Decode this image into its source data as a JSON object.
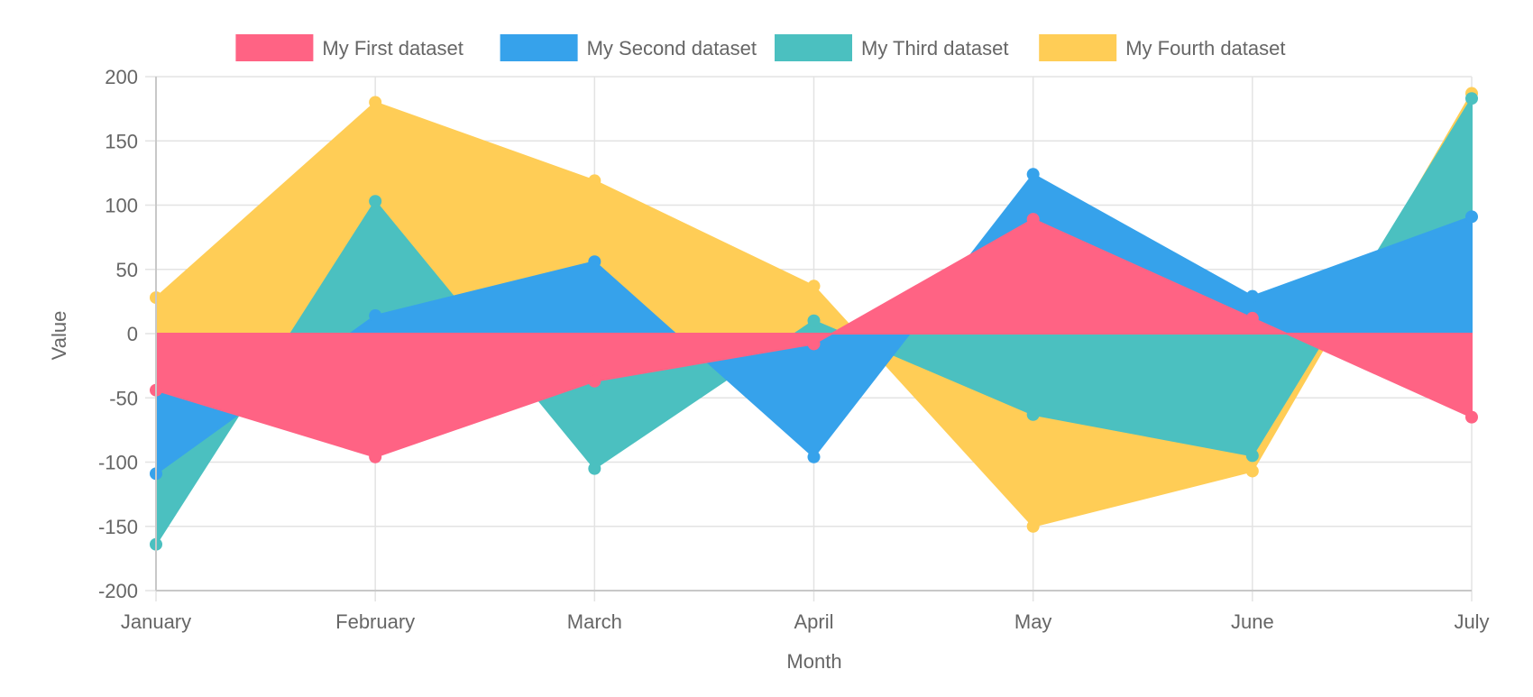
{
  "chart_data": {
    "type": "area",
    "title": "",
    "xlabel": "Month",
    "ylabel": "Value",
    "ylim": [
      -200,
      200
    ],
    "yticks": [
      200,
      150,
      100,
      50,
      0,
      -50,
      -100,
      -150,
      -200
    ],
    "categories": [
      "January",
      "February",
      "March",
      "April",
      "May",
      "June",
      "July"
    ],
    "fill_origin": 0,
    "legend_position": "top",
    "grid": true,
    "series": [
      {
        "name": "My Fourth dataset",
        "color": "#ffcd56",
        "values": [
          28,
          180,
          119,
          37,
          -150,
          -107,
          187
        ]
      },
      {
        "name": "My Third dataset",
        "color": "#4bc0c0",
        "values": [
          -164,
          103,
          -105,
          10,
          -63,
          -95,
          183
        ]
      },
      {
        "name": "My Second dataset",
        "color": "#36a2eb",
        "values": [
          -109,
          14,
          56,
          -96,
          124,
          29,
          91
        ]
      },
      {
        "name": "My First dataset",
        "color": "#ff6384",
        "values": [
          -44,
          -96,
          -37,
          -8,
          89,
          12,
          -65
        ]
      }
    ],
    "legend_order": [
      "My First dataset",
      "My Second dataset",
      "My Third dataset",
      "My Fourth dataset"
    ]
  }
}
